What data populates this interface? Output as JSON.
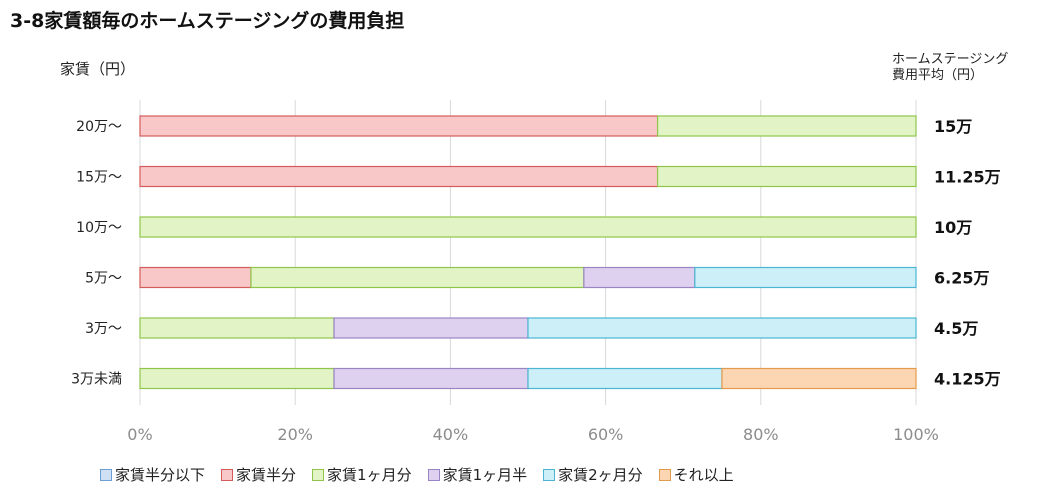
{
  "title": "3-8家賃額毎のホームステージングの費用負担",
  "y_axis_label": "家賃（円）",
  "avg_column_header": [
    "ホームステージング",
    "費用平均（円）"
  ],
  "colors": {
    "borders": [
      "#6d9fd6",
      "#d35b5b",
      "#8fc54a",
      "#9b84c3",
      "#4ab6d3",
      "#e49a4c"
    ],
    "fills": [
      "#cfe0f4",
      "#f8c8c8",
      "#e2f4c6",
      "#ddd1ef",
      "#cdeff8",
      "#fcd6b3"
    ]
  },
  "chart_data": {
    "type": "bar",
    "orientation": "horizontal",
    "stacked": "percent",
    "title": "3-8家賃額毎のホームステージングの費用負担",
    "ylabel": "家賃（円）",
    "categories": [
      "20万～",
      "15万～",
      "10万～",
      "5万～",
      "3万～",
      "3万未満"
    ],
    "series": [
      {
        "name": "家賃半分以下",
        "values": [
          0,
          0,
          0,
          0,
          0,
          0
        ]
      },
      {
        "name": "家賃半分",
        "values": [
          66.7,
          66.7,
          0,
          14.3,
          0,
          0
        ]
      },
      {
        "name": "家賃1ヶ月分",
        "values": [
          33.3,
          33.3,
          100,
          42.9,
          25,
          25
        ]
      },
      {
        "name": "家賃1ヶ月半",
        "values": [
          0,
          0,
          0,
          14.3,
          25,
          25
        ]
      },
      {
        "name": "家賃2ヶ月分",
        "values": [
          0,
          0,
          0,
          28.5,
          50,
          25
        ]
      },
      {
        "name": "それ以上",
        "values": [
          0,
          0,
          0,
          0,
          0,
          25
        ]
      }
    ],
    "xlim": [
      0,
      100
    ],
    "x_ticks": [
      "0%",
      "20%",
      "40%",
      "60%",
      "80%",
      "100%"
    ],
    "grid": true,
    "legend_position": "bottom",
    "average_cost_labels": [
      "15万",
      "11.25万",
      "10万",
      "6.25万",
      "4.5万",
      "4.125万"
    ]
  }
}
